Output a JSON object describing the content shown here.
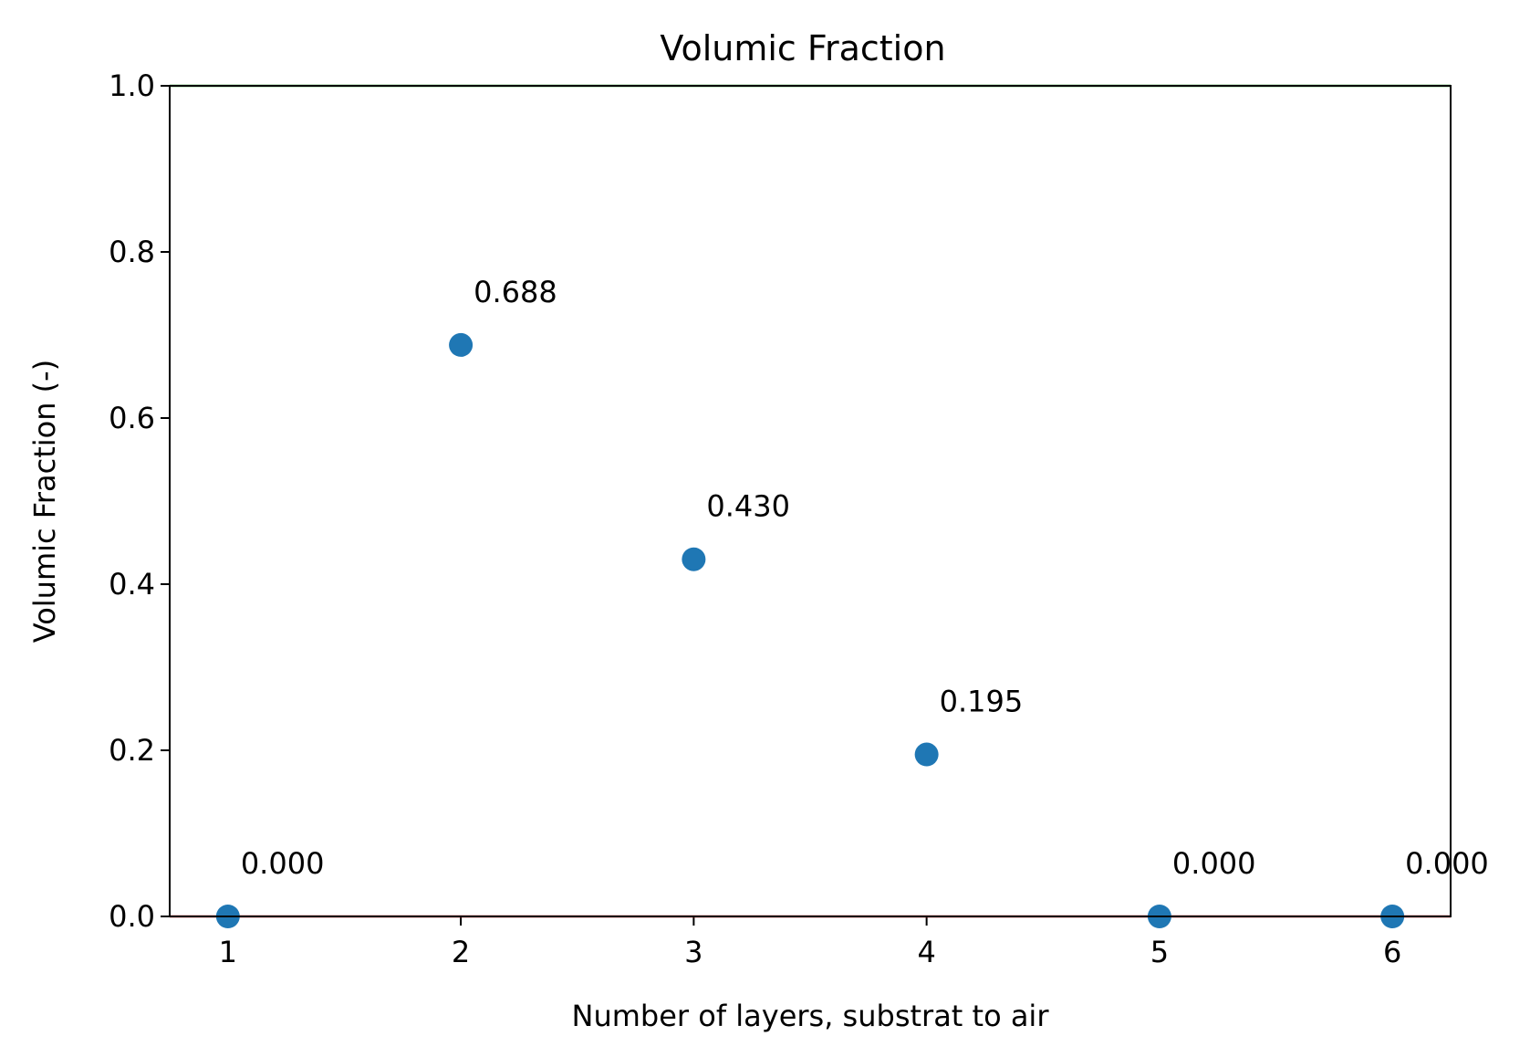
{
  "chart_data": {
    "type": "scatter",
    "title": "Volumic Fraction",
    "xlabel": "Number of layers, substrat to air",
    "ylabel": "Volumic Fraction (-)",
    "x": [
      1,
      2,
      3,
      4,
      5,
      6
    ],
    "y": [
      0.0,
      0.688,
      0.43,
      0.195,
      0.0,
      0.0
    ],
    "point_labels": [
      "0.000",
      "0.688",
      "0.430",
      "0.195",
      "0.000",
      "0.000"
    ],
    "xlim": [
      0.75,
      6.25
    ],
    "ylim": [
      0.0,
      1.0
    ],
    "x_ticks": [
      1,
      2,
      3,
      4,
      5,
      6
    ],
    "x_tick_labels": [
      "1",
      "2",
      "3",
      "4",
      "5",
      "6"
    ],
    "y_ticks": [
      0.0,
      0.2,
      0.4,
      0.6,
      0.8,
      1.0
    ],
    "y_tick_labels": [
      "0.0",
      "0.2",
      "0.4",
      "0.6",
      "0.8",
      "1.0"
    ],
    "reference_lines": [
      {
        "y": 0.0,
        "color": "#d62728"
      },
      {
        "y": 1.0,
        "color": "#2ca02c"
      }
    ],
    "grid": false,
    "point_color": "#1f77b4"
  }
}
